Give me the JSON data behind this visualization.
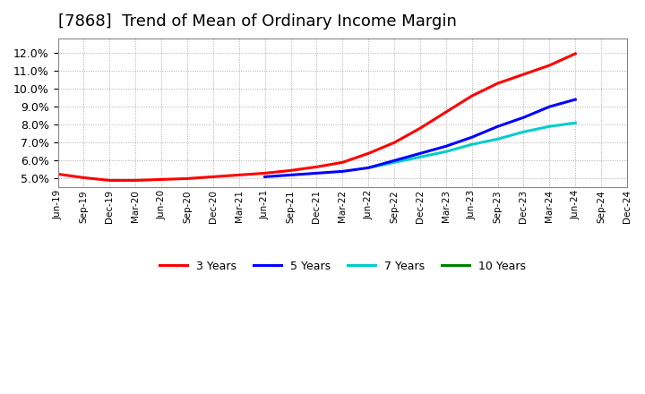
{
  "title": "[7868]  Trend of Mean of Ordinary Income Margin",
  "title_fontsize": 13,
  "background_color": "#ffffff",
  "plot_bg_color": "#ffffff",
  "grid_color": "#aaaaaa",
  "ylim": [
    0.045,
    0.128
  ],
  "yticks": [
    0.05,
    0.06,
    0.07,
    0.08,
    0.09,
    0.1,
    0.11,
    0.12
  ],
  "series": {
    "3 Years": {
      "color": "#ff0000",
      "data_x": [
        "Jun-19",
        "Sep-19",
        "Dec-19",
        "Mar-20",
        "Jun-20",
        "Sep-20",
        "Dec-20",
        "Mar-21",
        "Jun-21",
        "Sep-21",
        "Dec-21",
        "Mar-22",
        "Jun-22",
        "Sep-22",
        "Dec-22",
        "Mar-23",
        "Jun-23",
        "Sep-23",
        "Dec-23",
        "Mar-24",
        "Jun-24"
      ],
      "data_y": [
        0.0525,
        0.0505,
        0.049,
        0.049,
        0.0495,
        0.05,
        0.051,
        0.052,
        0.053,
        0.0545,
        0.0565,
        0.059,
        0.064,
        0.07,
        0.078,
        0.087,
        0.096,
        0.103,
        0.108,
        0.113,
        0.1195
      ]
    },
    "5 Years": {
      "color": "#0000ff",
      "data_x": [
        "Jun-21",
        "Sep-21",
        "Dec-21",
        "Mar-22",
        "Jun-22",
        "Sep-22",
        "Dec-22",
        "Mar-23",
        "Jun-23",
        "Sep-23",
        "Dec-23",
        "Mar-24",
        "Jun-24"
      ],
      "data_y": [
        0.051,
        0.052,
        0.053,
        0.054,
        0.056,
        0.06,
        0.064,
        0.068,
        0.073,
        0.079,
        0.084,
        0.09,
        0.094
      ]
    },
    "7 Years": {
      "color": "#00cccc",
      "data_x": [
        "Jun-22",
        "Sep-22",
        "Dec-22",
        "Mar-23",
        "Jun-23",
        "Sep-23",
        "Dec-23",
        "Mar-24",
        "Jun-24"
      ],
      "data_y": [
        0.056,
        0.059,
        0.062,
        0.065,
        0.069,
        0.072,
        0.076,
        0.079,
        0.081
      ]
    },
    "10 Years": {
      "color": "#008000",
      "data_x": [],
      "data_y": []
    }
  },
  "xtick_labels": [
    "Jun-19",
    "Sep-19",
    "Dec-19",
    "Mar-20",
    "Jun-20",
    "Sep-20",
    "Dec-20",
    "Mar-21",
    "Jun-21",
    "Sep-21",
    "Dec-21",
    "Mar-22",
    "Jun-22",
    "Sep-22",
    "Dec-22",
    "Mar-23",
    "Jun-23",
    "Sep-23",
    "Dec-23",
    "Mar-24",
    "Jun-24",
    "Sep-24",
    "Dec-24"
  ],
  "legend_loc": "lower center",
  "linewidth": 2.2
}
